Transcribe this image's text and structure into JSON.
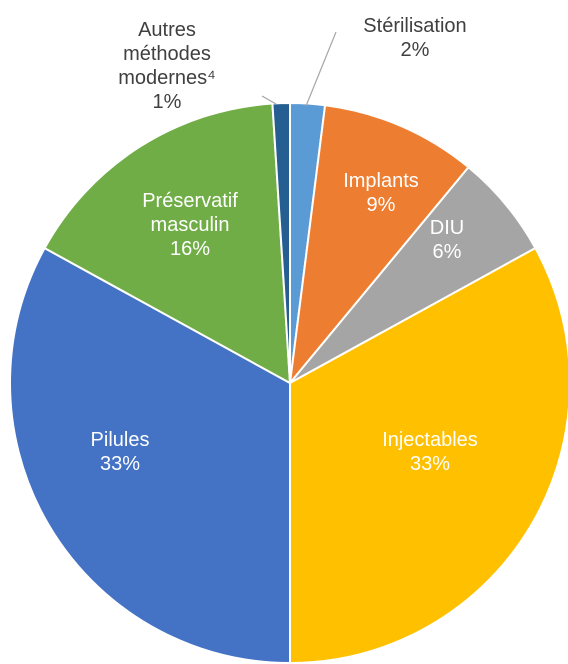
{
  "chart_data": {
    "type": "pie",
    "categories": [
      "Stérilisation",
      "Implants",
      "DIU",
      "Injectables",
      "Pilules",
      "Préservatif masculin",
      "Autres méthodes modernes⁴"
    ],
    "values": [
      2,
      9,
      6,
      33,
      33,
      16,
      1
    ],
    "value_labels": [
      "2%",
      "9%",
      "6%",
      "33%",
      "33%",
      "16%",
      "1%"
    ],
    "colors": [
      "#5b9bd5",
      "#ed7d31",
      "#a5a5a5",
      "#ffc000",
      "#4472c4",
      "#70ad47",
      "#255e91"
    ]
  }
}
